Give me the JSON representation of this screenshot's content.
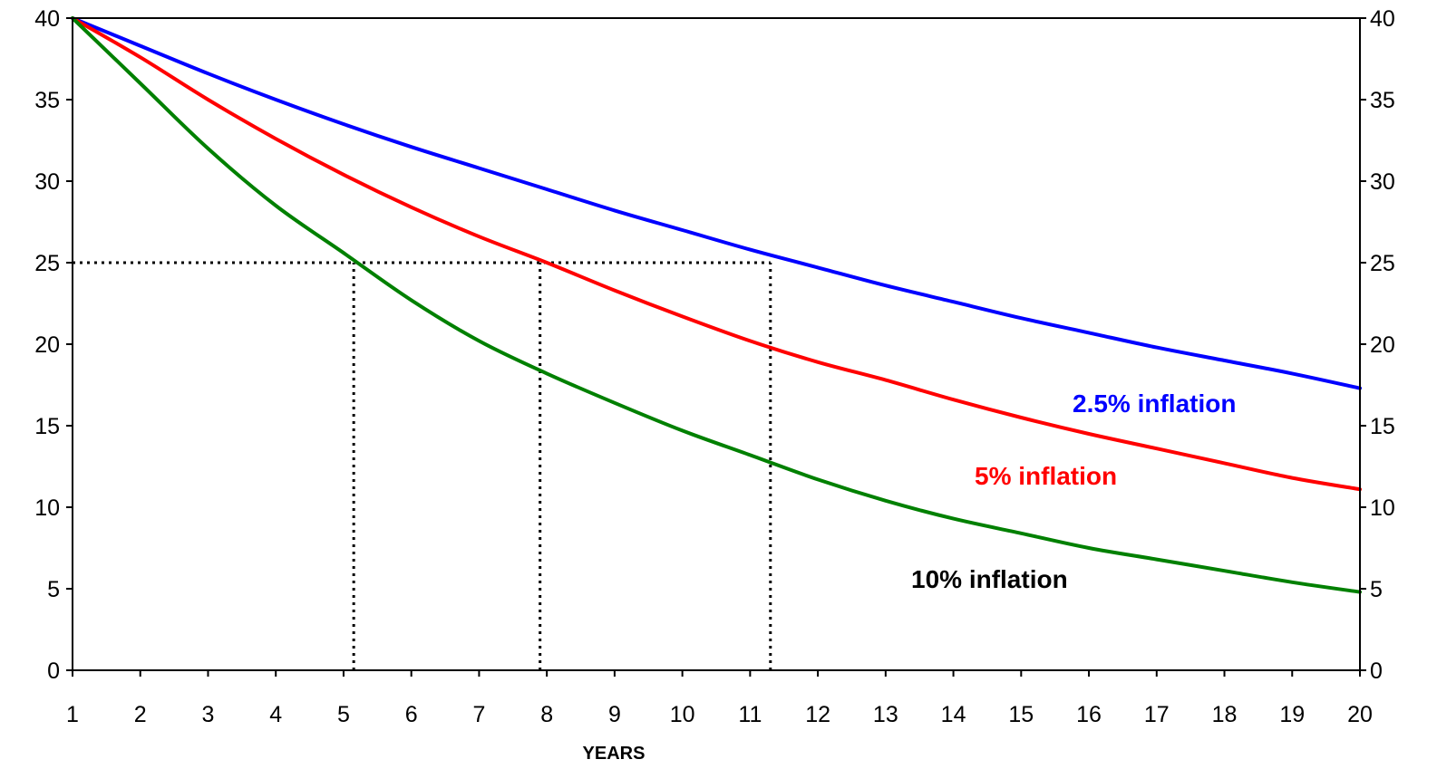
{
  "chart_data": {
    "type": "line",
    "xlabel": "YEARS",
    "ylabel": "",
    "xlim": [
      1,
      20
    ],
    "ylim": [
      0,
      40
    ],
    "x_ticks": [
      1,
      2,
      3,
      4,
      5,
      6,
      7,
      8,
      9,
      10,
      11,
      12,
      13,
      14,
      15,
      16,
      17,
      18,
      19,
      20
    ],
    "y_ticks": [
      0,
      5,
      10,
      15,
      20,
      25,
      30,
      35,
      40
    ],
    "y_axis_sides": [
      "left",
      "right"
    ],
    "grid": false,
    "x": [
      1,
      2,
      3,
      4,
      5,
      6,
      7,
      8,
      9,
      10,
      11,
      12,
      13,
      14,
      15,
      16,
      17,
      18,
      19,
      20
    ],
    "series": [
      {
        "name": "2.5% inflation",
        "color": "#0000ff",
        "values": [
          40.0,
          38.3,
          36.6,
          35.0,
          33.5,
          32.1,
          30.8,
          29.5,
          28.2,
          27.0,
          25.8,
          24.7,
          23.6,
          22.6,
          21.6,
          20.7,
          19.8,
          19.0,
          18.2,
          17.3
        ]
      },
      {
        "name": "5% inflation",
        "color": "#ff0000",
        "values": [
          40.0,
          37.6,
          35.0,
          32.6,
          30.4,
          28.4,
          26.6,
          25.0,
          23.3,
          21.7,
          20.2,
          18.9,
          17.8,
          16.6,
          15.5,
          14.5,
          13.6,
          12.7,
          11.8,
          11.1
        ]
      },
      {
        "name": "10% inflation",
        "color": "#008000",
        "label_color": "#000000",
        "values": [
          40.0,
          36.0,
          32.0,
          28.5,
          25.6,
          22.7,
          20.2,
          18.2,
          16.4,
          14.7,
          13.2,
          11.7,
          10.4,
          9.3,
          8.4,
          7.5,
          6.8,
          6.1,
          5.4,
          4.8
        ]
      }
    ],
    "reference_lines": {
      "horizontal": {
        "y": 25,
        "style": "dotted",
        "color": "#000000",
        "x_from": 1,
        "x_to": 11.3
      },
      "vertical": [
        {
          "x": 5.15,
          "style": "dotted",
          "color": "#000000",
          "y_from": 0,
          "y_to": 25
        },
        {
          "x": 7.9,
          "style": "dotted",
          "color": "#000000",
          "y_from": 0,
          "y_to": 25
        },
        {
          "x": 11.3,
          "style": "dotted",
          "color": "#000000",
          "y_from": 0,
          "y_to": 25
        }
      ]
    }
  }
}
